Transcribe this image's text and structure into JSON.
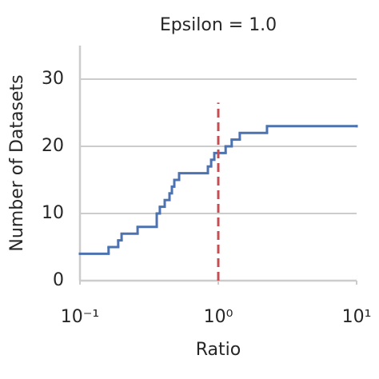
{
  "chart_data": {
    "type": "step",
    "title": "Epsilon = 1.0",
    "xlabel": "Ratio",
    "ylabel": "Number of Datasets",
    "xscale": "log",
    "x": [
      0.1,
      0.161,
      0.189,
      0.2,
      0.261,
      0.359,
      0.378,
      0.41,
      0.444,
      0.462,
      0.481,
      0.521,
      0.841,
      0.888,
      0.936,
      1.13,
      1.25,
      1.43,
      2.25,
      10
    ],
    "series": [
      {
        "color": "#4c72b0",
        "values": [
          4,
          5,
          6,
          7,
          8,
          10,
          11,
          12,
          13,
          14,
          15,
          16,
          17,
          18,
          19,
          20,
          21,
          22,
          23,
          23
        ]
      }
    ],
    "vline": {
      "x": 1,
      "ymax": 26.5,
      "color": "#c44e52"
    },
    "xlim": [
      0.1,
      10
    ],
    "ylim": [
      0,
      35
    ],
    "xticks": [
      {
        "value": 0.1,
        "label": "10⁻¹"
      },
      {
        "value": 1,
        "label": "10⁰"
      },
      {
        "value": 10,
        "label": "10¹"
      }
    ],
    "yticks": [
      0,
      10,
      20,
      30
    ],
    "grid": true
  }
}
